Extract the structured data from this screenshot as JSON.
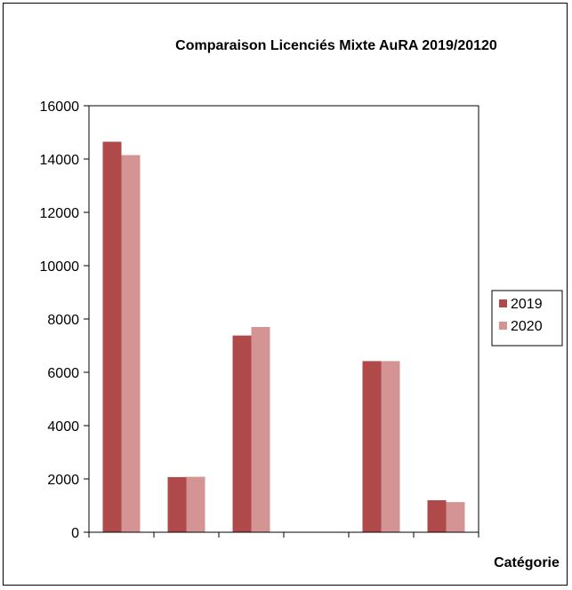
{
  "chart_data": {
    "type": "bar",
    "title": "Comparaison Licenciés Mixte AuRA 2019/20120",
    "xlabel": "Catégorie",
    "ylabel": "",
    "ylim": [
      0,
      16000
    ],
    "yticks": [
      0,
      2000,
      4000,
      6000,
      8000,
      10000,
      12000,
      14000,
      16000
    ],
    "grid": false,
    "legend_position": "right",
    "categories": [
      "",
      "",
      "",
      "",
      "",
      ""
    ],
    "series": [
      {
        "name": "2019",
        "color": "#B04A4A",
        "values": [
          14650,
          2070,
          7380,
          0,
          6420,
          1200
        ]
      },
      {
        "name": "2020",
        "color": "#D49494",
        "values": [
          14150,
          2080,
          7700,
          0,
          6420,
          1130
        ]
      }
    ]
  }
}
